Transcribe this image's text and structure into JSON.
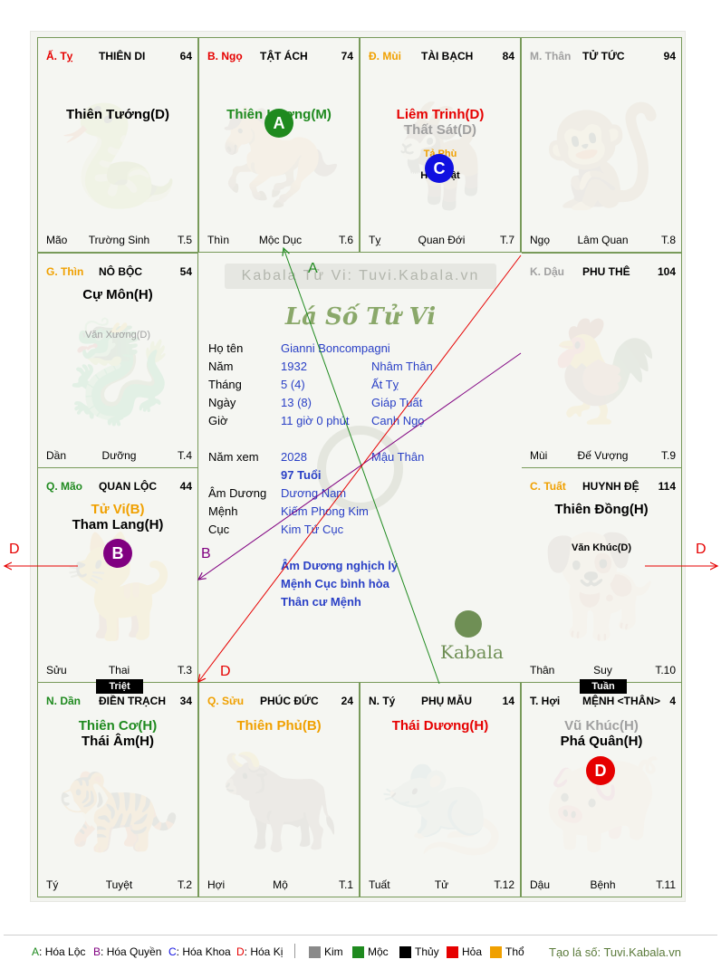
{
  "board_watermark": "Kabala Tử Vi: Tuvi.Kabala.vn",
  "title": "Lá Số Tử Vi",
  "logo_text": "Kabala",
  "cells": [
    {
      "id": "ty_snake",
      "can": "Ấ. Tỵ",
      "palace": "THIÊN DI",
      "num": "64",
      "stars": [
        {
          "text": "Thiên Tướng(D)",
          "color": "#000000",
          "size": "main"
        }
      ],
      "foot_left": "Mão",
      "foot_mid": "Trường Sinh",
      "foot_right": "T.5"
    },
    {
      "id": "ngo_horse",
      "can": "B. Ngọ",
      "palace": "TẬT ÁCH",
      "num": "74",
      "stars": [
        {
          "text": "Thiên Lương(M)",
          "color": "#1f8a1f",
          "size": "main"
        }
      ],
      "foot_left": "Thìn",
      "foot_mid": "Mộc Dục",
      "foot_right": "T.6"
    },
    {
      "id": "mui_goat",
      "can": "Đ. Mùi",
      "palace": "TÀI BẠCH",
      "num": "84",
      "stars": [
        {
          "text": "Liêm Trinh(D)",
          "color": "#e60000",
          "size": "main"
        },
        {
          "text": "Thất Sát(D)",
          "color": "#a0a0a0",
          "size": "main"
        },
        {
          "text": "Tả Phù",
          "color": "#f0a000",
          "size": "sub"
        },
        {
          "text": "Hữu Bật",
          "color": "#000000",
          "size": "sub"
        }
      ],
      "foot_left": "Tỵ",
      "foot_mid": "Quan Đới",
      "foot_right": "T.7"
    },
    {
      "id": "than_monkey",
      "can": "M. Thân",
      "palace": "TỬ TỨC",
      "num": "94",
      "stars": [],
      "foot_left": "Ngọ",
      "foot_mid": "Lâm Quan",
      "foot_right": "T.8"
    },
    {
      "id": "thin_dragon",
      "can": "G. Thìn",
      "palace": "NÔ BỘC",
      "num": "54",
      "stars": [
        {
          "text": "Cự Môn(H)",
          "color": "#000000",
          "size": "main"
        },
        {
          "text": "Văn Xương(D)",
          "color": "#a0a0a0",
          "size": "sub"
        }
      ],
      "foot_left": "Dần",
      "foot_mid": "Dưỡng",
      "foot_right": "T.4"
    },
    {
      "id": "dau_rooster",
      "can": "K. Dậu",
      "palace": "PHU THÊ",
      "num": "104",
      "stars": [],
      "foot_left": "Mùi",
      "foot_mid": "Đế Vượng",
      "foot_right": "T.9"
    },
    {
      "id": "mao_cat",
      "can": "Q. Mão",
      "palace": "QUAN LỘC",
      "num": "44",
      "stars": [
        {
          "text": "Tử Vi(B)",
          "color": "#f0a000",
          "size": "main"
        },
        {
          "text": "Tham Lang(H)",
          "color": "#000000",
          "size": "main"
        }
      ],
      "foot_left": "Sửu",
      "foot_mid": "Thai",
      "foot_right": "T.3"
    },
    {
      "id": "tuat_dog",
      "can": "C. Tuất",
      "palace": "HUYNH ĐỆ",
      "num": "114",
      "stars": [
        {
          "text": "Thiên Đồng(H)",
          "color": "#000000",
          "size": "main"
        },
        {
          "text": "Văn Khúc(D)",
          "color": "#000000",
          "size": "sub"
        }
      ],
      "foot_left": "Thân",
      "foot_mid": "Suy",
      "foot_right": "T.10"
    },
    {
      "id": "dan_tiger",
      "can": "N. Dần",
      "palace": "ĐIỀN TRẠCH",
      "num": "34",
      "stars": [
        {
          "text": "Thiên Cơ(H)",
          "color": "#1f8a1f",
          "size": "main"
        },
        {
          "text": "Thái Âm(H)",
          "color": "#000000",
          "size": "main"
        }
      ],
      "foot_left": "Tý",
      "foot_mid": "Tuyệt",
      "foot_right": "T.2"
    },
    {
      "id": "suu_ox",
      "can": "Q. Sửu",
      "palace": "PHÚC ĐỨC",
      "num": "24",
      "stars": [
        {
          "text": "Thiên Phủ(B)",
          "color": "#f0a000",
          "size": "main"
        }
      ],
      "foot_left": "Hợi",
      "foot_mid": "Mộ",
      "foot_right": "T.1"
    },
    {
      "id": "ty_rat",
      "can": "N. Tý",
      "palace": "PHỤ MẪU",
      "num": "14",
      "stars": [
        {
          "text": "Thái Dương(H)",
          "color": "#e60000",
          "size": "main"
        }
      ],
      "foot_left": "Tuất",
      "foot_mid": "Tử",
      "foot_right": "T.12"
    },
    {
      "id": "hoi_pig",
      "can": "T. Hợi",
      "palace": "MỆNH <THÂN>",
      "num": "4",
      "stars": [
        {
          "text": "Vũ Khúc(H)",
          "color": "#a0a0a0",
          "size": "main"
        },
        {
          "text": "Phá Quân(H)",
          "color": "#000000",
          "size": "main"
        }
      ],
      "foot_left": "Dậu",
      "foot_mid": "Bệnh",
      "foot_right": "T.11"
    }
  ],
  "can_colors": {
    "ty_snake": "#e60000",
    "ngo_horse": "#e60000",
    "mui_goat": "#f0a000",
    "than_monkey": "#a0a0a0",
    "thin_dragon": "#f0a000",
    "dau_rooster": "#a0a0a0",
    "mao_cat": "#1f8a1f",
    "tuat_dog": "#f0a000",
    "dan_tiger": "#1f8a1f",
    "suu_ox": "#f0a000",
    "ty_rat": "#000000",
    "hoi_pig": "#000000"
  },
  "badges": {
    "A": "A",
    "B": "B",
    "C": "C",
    "D": "D"
  },
  "badge_colors": {
    "A": "#1f8a1f",
    "B": "#800080",
    "C": "#1010e0",
    "D": "#e60000"
  },
  "arrow_labels": {
    "A": "A",
    "B": "B",
    "D": "D"
  },
  "tags": {
    "triet": "Triệt",
    "tuan": "Tuần"
  },
  "info": {
    "name_label": "Họ tên",
    "name": "Gianni Boncompagni",
    "year_label": "Năm",
    "year": "1932",
    "year_cc": "Nhâm Thân",
    "month_label": "Tháng",
    "month": "5  (4)",
    "month_cc": "Ất Tỵ",
    "day_label": "Ngày",
    "day": "13  (8)",
    "day_cc": "Giáp Tuất",
    "hour_label": "Giờ",
    "hour": "11 giờ 0 phút",
    "hour_cc": "Canh Ngọ",
    "view_year_label": "Năm xem",
    "view_year": "2028",
    "view_year_cc": "Mậu Thân",
    "age": "97 Tuổi",
    "amduong_label": "Âm Dương",
    "amduong": "Dương Nam",
    "menh_label": "Mệnh",
    "menh": "Kiếm Phong Kim",
    "cuc_label": "Cục",
    "cuc": "Kim Tứ Cục",
    "notes": [
      "Âm Dương nghịch lý",
      "Mệnh Cục bình hòa",
      "Thân cư Mệnh"
    ]
  },
  "legend": {
    "hoa_loc": "Hóa Lộc",
    "hoa_quyen": "Hóa Quyền",
    "hoa_khoa": "Hóa Khoa",
    "hoa_ki": "Hóa Kị",
    "kim": "Kim",
    "moc": "Mộc",
    "thuy": "Thủy",
    "hoa": "Hỏa",
    "tho": "Thổ",
    "credit": "Tạo lá số: Tuvi.Kabala.vn"
  },
  "legend_colors": {
    "kim": "#8a8a8a",
    "moc": "#1f8a1f",
    "thuy": "#000000",
    "hoa": "#e60000",
    "tho": "#f0a000"
  }
}
